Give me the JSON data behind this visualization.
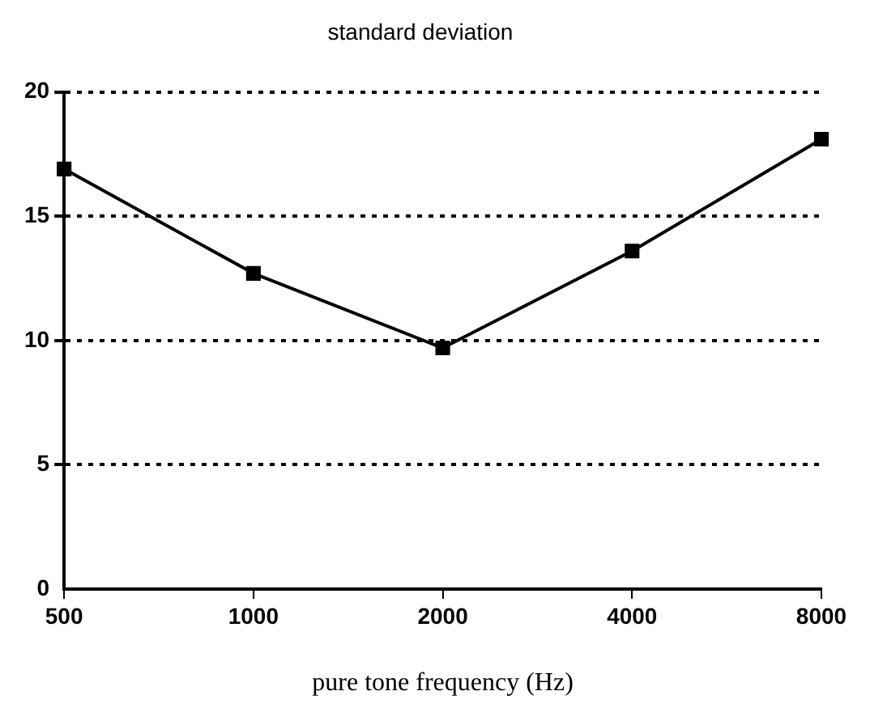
{
  "chart_data": {
    "type": "line",
    "title": "standard deviation",
    "xlabel": "pure tone frequency (Hz)",
    "categories": [
      "500",
      "1000",
      "2000",
      "4000",
      "8000"
    ],
    "series": [
      {
        "color": "#000000",
        "values": [
          16.9,
          12.7,
          9.7,
          13.6,
          18.1
        ]
      }
    ],
    "ylim": [
      0,
      20
    ],
    "yticks": [
      0,
      5,
      10,
      15,
      20
    ],
    "grid": "y",
    "marker": "square",
    "line_style": "solid",
    "legend": false
  }
}
